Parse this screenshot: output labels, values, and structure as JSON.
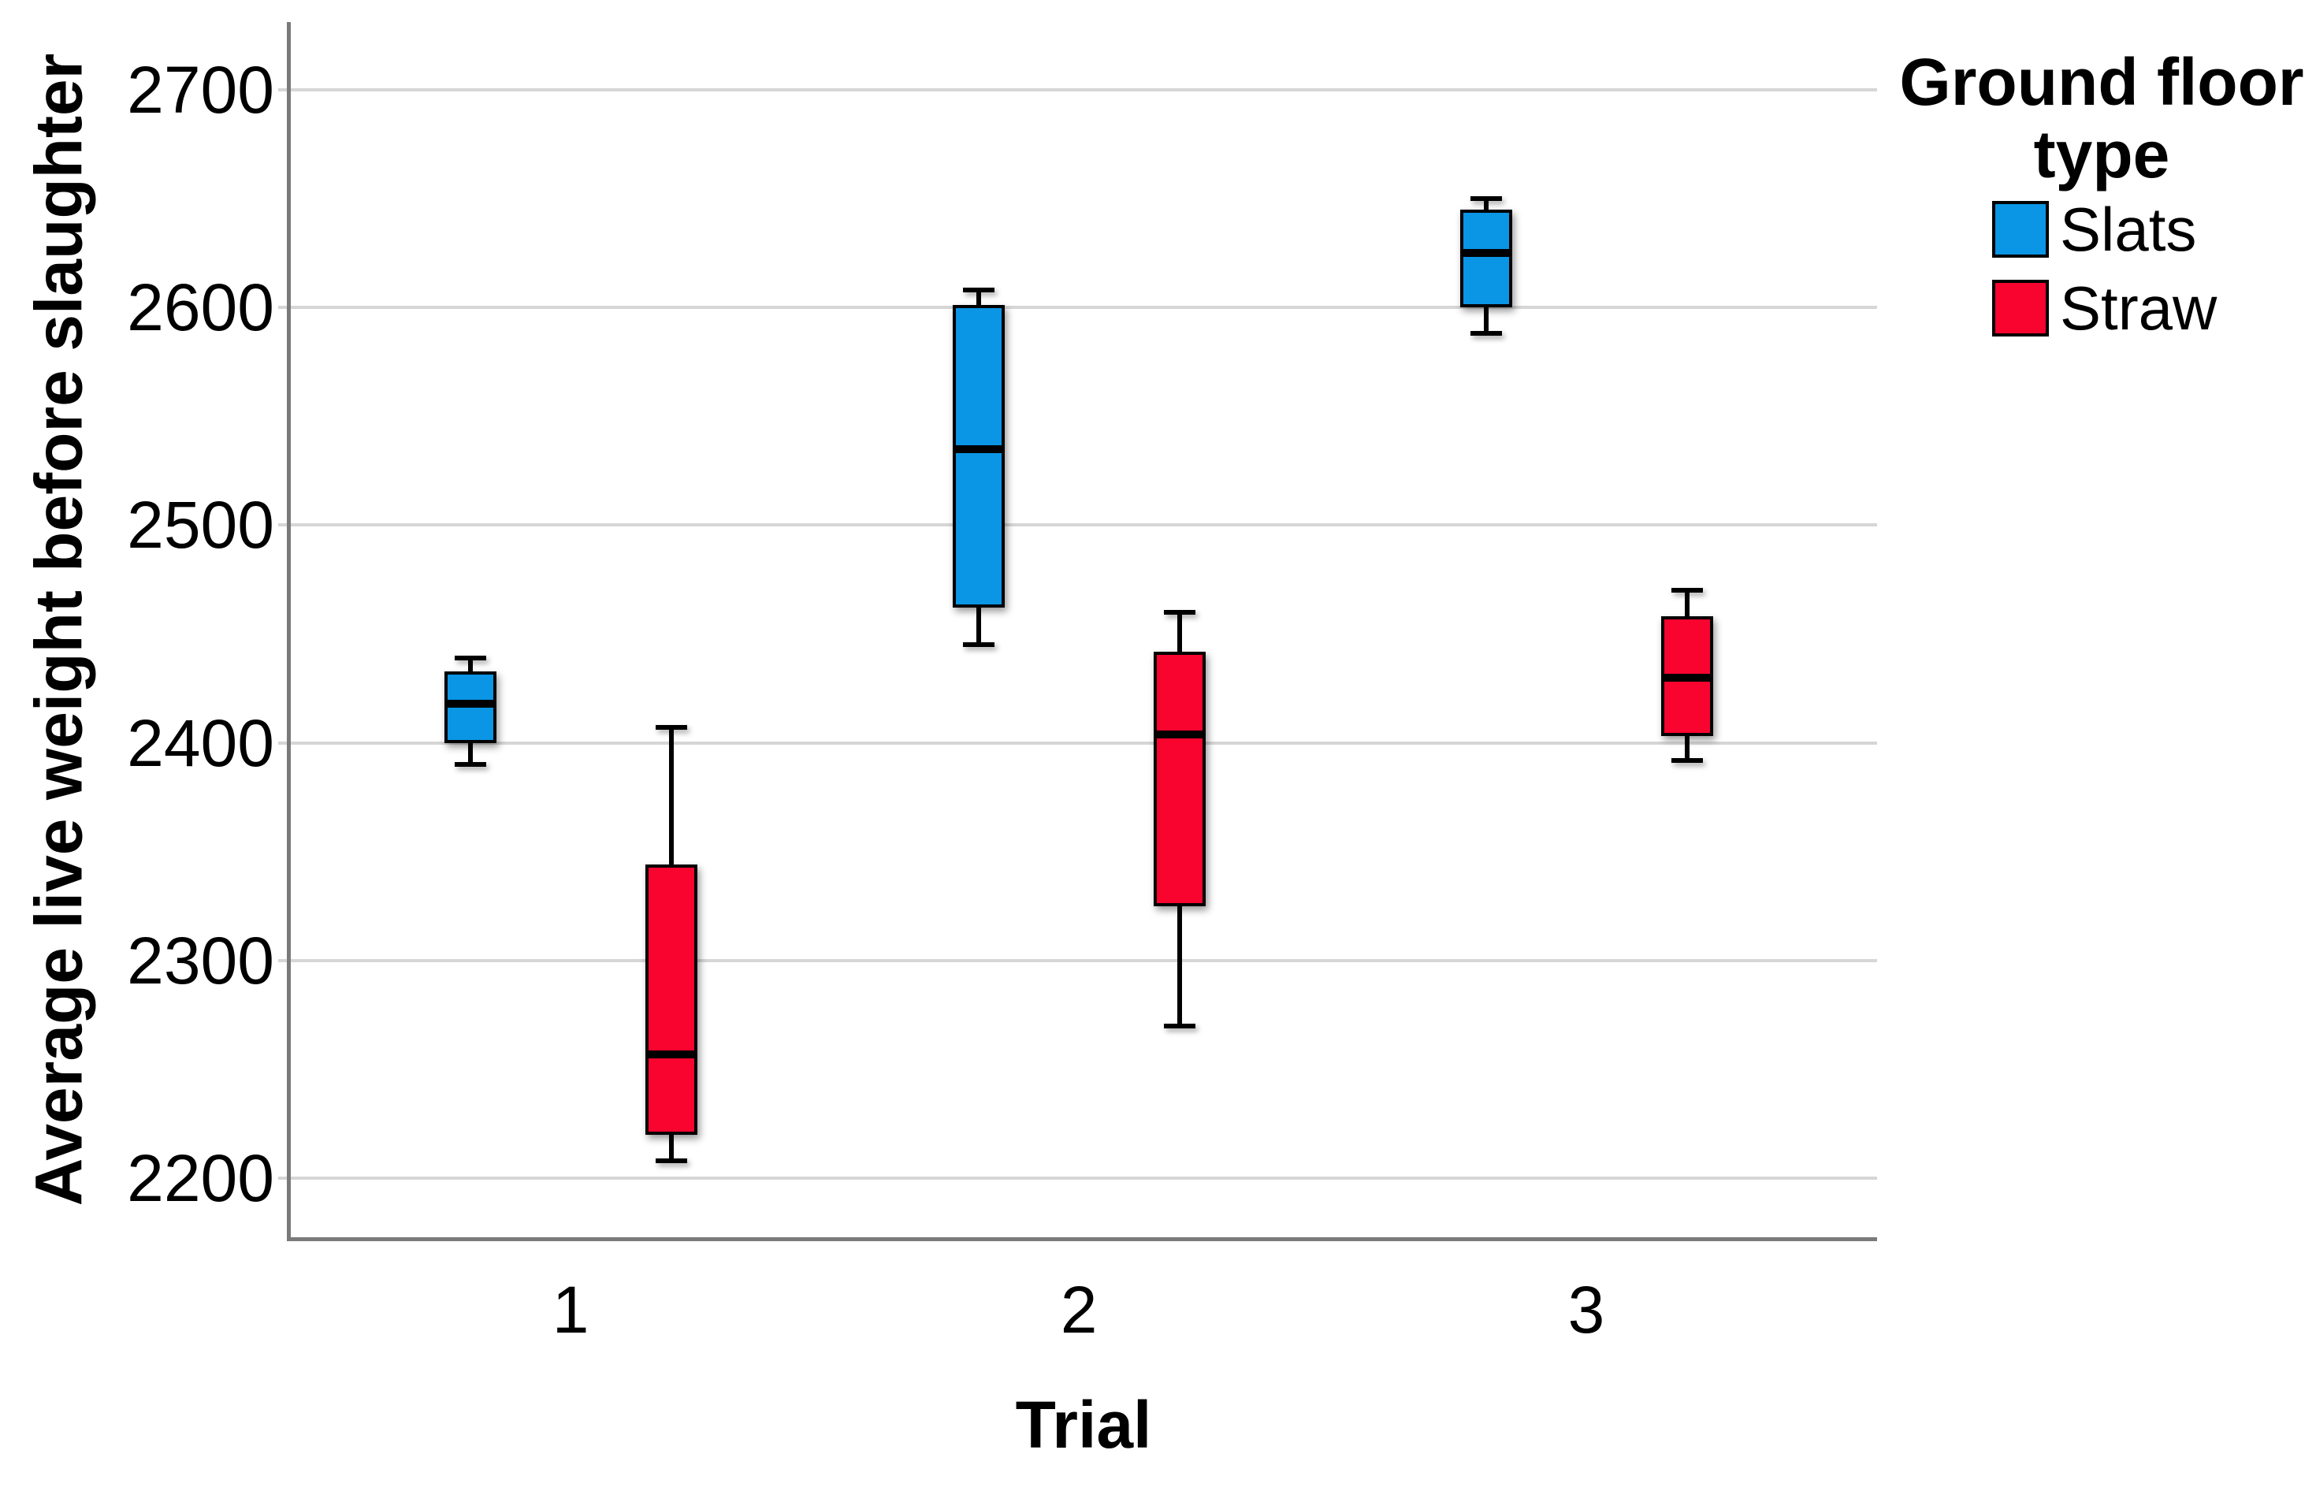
{
  "chart_data": {
    "type": "boxplot",
    "title": "",
    "xlabel": "Trial",
    "ylabel": "Average live weight before slaughter",
    "categories": [
      "1",
      "2",
      "3"
    ],
    "y_ticks": [
      2700,
      2600,
      2500,
      2400,
      2300,
      2200
    ],
    "ylim": [
      2173,
      2731
    ],
    "grid": "horizontal-gridlines",
    "legend": {
      "title": "Ground floor type",
      "position": "top-right",
      "entries": [
        {
          "label": "Slats",
          "color": "#0A95E5"
        },
        {
          "label": "Straw",
          "color": "#F9032F"
        }
      ]
    },
    "series": [
      {
        "name": "Slats",
        "color": "#0A95E5",
        "boxes": [
          {
            "category": "1",
            "min": 2390,
            "q1": 2400,
            "median": 2418,
            "q3": 2433,
            "max": 2439
          },
          {
            "category": "2",
            "min": 2445,
            "q1": 2462,
            "median": 2535,
            "q3": 2601,
            "max": 2608
          },
          {
            "category": "3",
            "min": 2588,
            "q1": 2600,
            "median": 2625,
            "q3": 2645,
            "max": 2650
          }
        ]
      },
      {
        "name": "Straw",
        "color": "#F9032F",
        "boxes": [
          {
            "category": "1",
            "min": 2208,
            "q1": 2220,
            "median": 2257,
            "q3": 2344,
            "max": 2407
          },
          {
            "category": "2",
            "min": 2270,
            "q1": 2325,
            "median": 2404,
            "q3": 2442,
            "max": 2460
          },
          {
            "category": "3",
            "min": 2392,
            "q1": 2403,
            "median": 2430,
            "q3": 2458,
            "max": 2470
          }
        ]
      }
    ],
    "colors": {
      "gridline": "#D6D6D6",
      "axis": "#7A7A7A",
      "text": "#000000",
      "background": "#FFFFFF",
      "box_border": "#000000"
    }
  }
}
